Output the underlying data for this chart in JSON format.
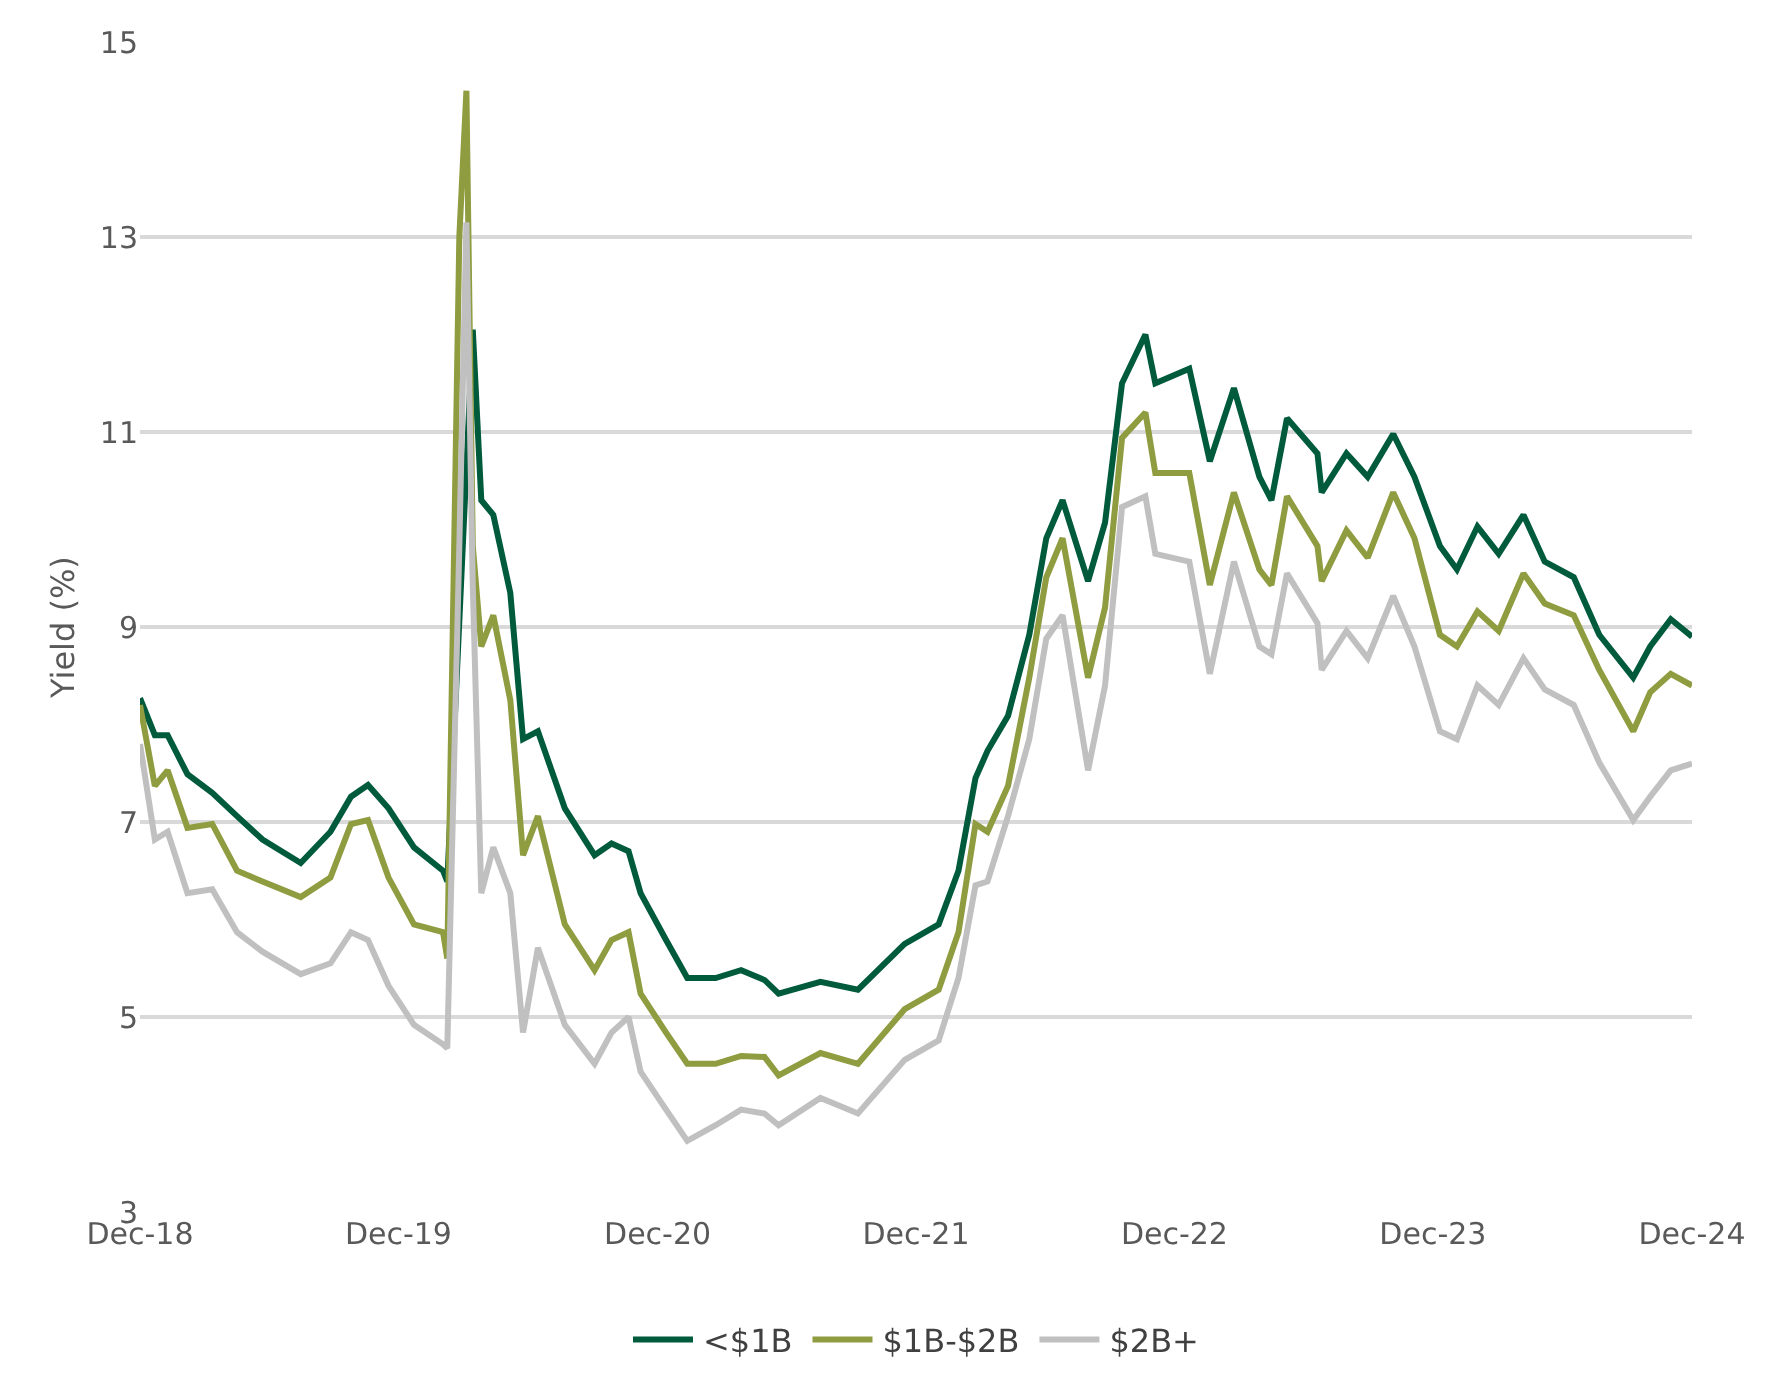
{
  "chart_data": {
    "type": "line",
    "ylabel": "Yield (%)",
    "x": [
      "2018-12-31",
      "2019-01-21",
      "2019-02-08",
      "2019-03-08",
      "2019-04-12",
      "2019-05-17",
      "2019-06-22",
      "2019-08-15",
      "2019-09-26",
      "2019-10-25",
      "2019-11-18",
      "2019-12-17",
      "2020-01-22",
      "2020-03-03",
      "2020-03-09",
      "2020-03-26",
      "2020-04-05",
      "2020-04-14",
      "2020-04-26",
      "2020-05-13",
      "2020-06-06",
      "2020-06-24",
      "2020-07-15",
      "2020-08-22",
      "2020-10-03",
      "2020-10-27",
      "2020-11-20",
      "2020-12-07",
      "2021-01-12",
      "2021-02-11",
      "2021-03-23",
      "2021-04-28",
      "2021-05-31",
      "2021-06-20",
      "2021-08-18",
      "2021-10-10",
      "2021-12-15",
      "2022-02-01",
      "2022-03-01",
      "2022-03-25",
      "2022-04-11",
      "2022-05-10",
      "2022-06-09",
      "2022-07-03",
      "2022-07-26",
      "2022-08-31",
      "2022-09-24",
      "2022-10-18",
      "2022-11-20",
      "2022-12-04",
      "2023-01-21",
      "2023-02-19",
      "2023-03-25",
      "2023-04-30",
      "2023-05-17",
      "2023-06-08",
      "2023-07-21",
      "2023-07-27",
      "2023-08-31",
      "2023-09-30",
      "2023-11-05",
      "2023-12-05",
      "2024-01-10",
      "2024-02-03",
      "2024-03-03",
      "2024-04-02",
      "2024-05-07",
      "2024-06-06",
      "2024-07-17",
      "2024-08-22",
      "2024-10-09",
      "2024-11-02",
      "2024-12-01",
      "2024-12-31"
    ],
    "series": [
      {
        "name": "<$1B",
        "color": "#005a3c",
        "values": [
          8.27,
          7.89,
          7.89,
          7.49,
          7.3,
          7.06,
          6.82,
          6.58,
          6.9,
          7.26,
          7.38,
          7.14,
          6.74,
          6.5,
          6.39,
          null,
          null,
          12.05,
          10.3,
          10.15,
          9.35,
          7.85,
          7.93,
          7.14,
          6.66,
          6.78,
          6.7,
          6.27,
          5.79,
          5.4,
          5.4,
          5.48,
          5.38,
          5.24,
          5.36,
          5.28,
          5.75,
          5.95,
          6.5,
          7.45,
          7.73,
          8.09,
          8.92,
          9.91,
          10.3,
          9.47,
          10.07,
          11.5,
          12.0,
          11.5,
          11.65,
          10.7,
          11.45,
          10.54,
          10.3,
          11.14,
          10.78,
          10.38,
          10.78,
          10.54,
          10.98,
          10.54,
          9.83,
          9.59,
          10.03,
          9.75,
          10.15,
          9.67,
          9.51,
          8.92,
          8.48,
          8.8,
          9.08,
          8.9
        ]
      },
      {
        "name": "$1B-$2B",
        "color": "#8f9c3f",
        "values": [
          8.2,
          7.37,
          7.53,
          6.94,
          6.98,
          6.5,
          6.39,
          6.23,
          6.43,
          6.98,
          7.02,
          6.43,
          5.95,
          5.87,
          5.6,
          13.0,
          14.5,
          9.83,
          8.8,
          9.12,
          8.25,
          6.66,
          7.06,
          5.95,
          5.48,
          5.79,
          5.87,
          5.24,
          4.84,
          4.52,
          4.52,
          4.6,
          4.59,
          4.4,
          4.63,
          4.52,
          5.08,
          5.28,
          5.87,
          6.98,
          6.9,
          7.37,
          8.48,
          9.51,
          9.91,
          8.48,
          9.2,
          10.94,
          11.2,
          10.58,
          10.58,
          9.43,
          10.38,
          9.59,
          9.43,
          10.34,
          9.83,
          9.47,
          9.99,
          9.71,
          10.38,
          9.91,
          8.92,
          8.8,
          9.16,
          8.96,
          9.55,
          9.24,
          9.12,
          8.56,
          7.93,
          8.33,
          8.52,
          8.4
        ]
      },
      {
        "name": "$2B+",
        "color": "#c0c0c0",
        "values": [
          7.8,
          6.82,
          6.9,
          6.27,
          6.31,
          5.87,
          5.67,
          5.44,
          5.55,
          5.87,
          5.79,
          5.32,
          4.92,
          4.72,
          4.68,
          9.83,
          13.15,
          9.43,
          6.27,
          6.74,
          6.27,
          4.84,
          5.71,
          4.92,
          4.52,
          4.84,
          5.0,
          4.44,
          4.05,
          3.73,
          3.89,
          4.05,
          4.01,
          3.89,
          4.17,
          4.01,
          4.56,
          4.76,
          5.4,
          6.35,
          6.39,
          7.06,
          7.85,
          8.88,
          9.12,
          7.53,
          8.4,
          10.23,
          10.34,
          9.75,
          9.67,
          8.52,
          9.67,
          8.8,
          8.72,
          9.55,
          9.04,
          8.56,
          8.96,
          8.68,
          9.32,
          8.8,
          7.93,
          7.85,
          8.4,
          8.2,
          8.68,
          8.36,
          8.2,
          7.61,
          7.02,
          7.26,
          7.53,
          7.6
        ]
      }
    ],
    "xlim": [
      "2018-12-31",
      "2024-12-31"
    ],
    "xticks": [
      {
        "value": "2018-12-31",
        "label": "Dec-18"
      },
      {
        "value": "2019-12-31",
        "label": "Dec-19"
      },
      {
        "value": "2020-12-31",
        "label": "Dec-20"
      },
      {
        "value": "2021-12-31",
        "label": "Dec-21"
      },
      {
        "value": "2022-12-31",
        "label": "Dec-22"
      },
      {
        "value": "2023-12-31",
        "label": "Dec-23"
      },
      {
        "value": "2024-12-31",
        "label": "Dec-24"
      }
    ],
    "ylim": [
      3,
      15
    ],
    "yticks": [
      3,
      5,
      7,
      9,
      11,
      13,
      15
    ],
    "grid": "y",
    "legend": "bottom",
    "marker": "none",
    "line_style": "solid"
  }
}
